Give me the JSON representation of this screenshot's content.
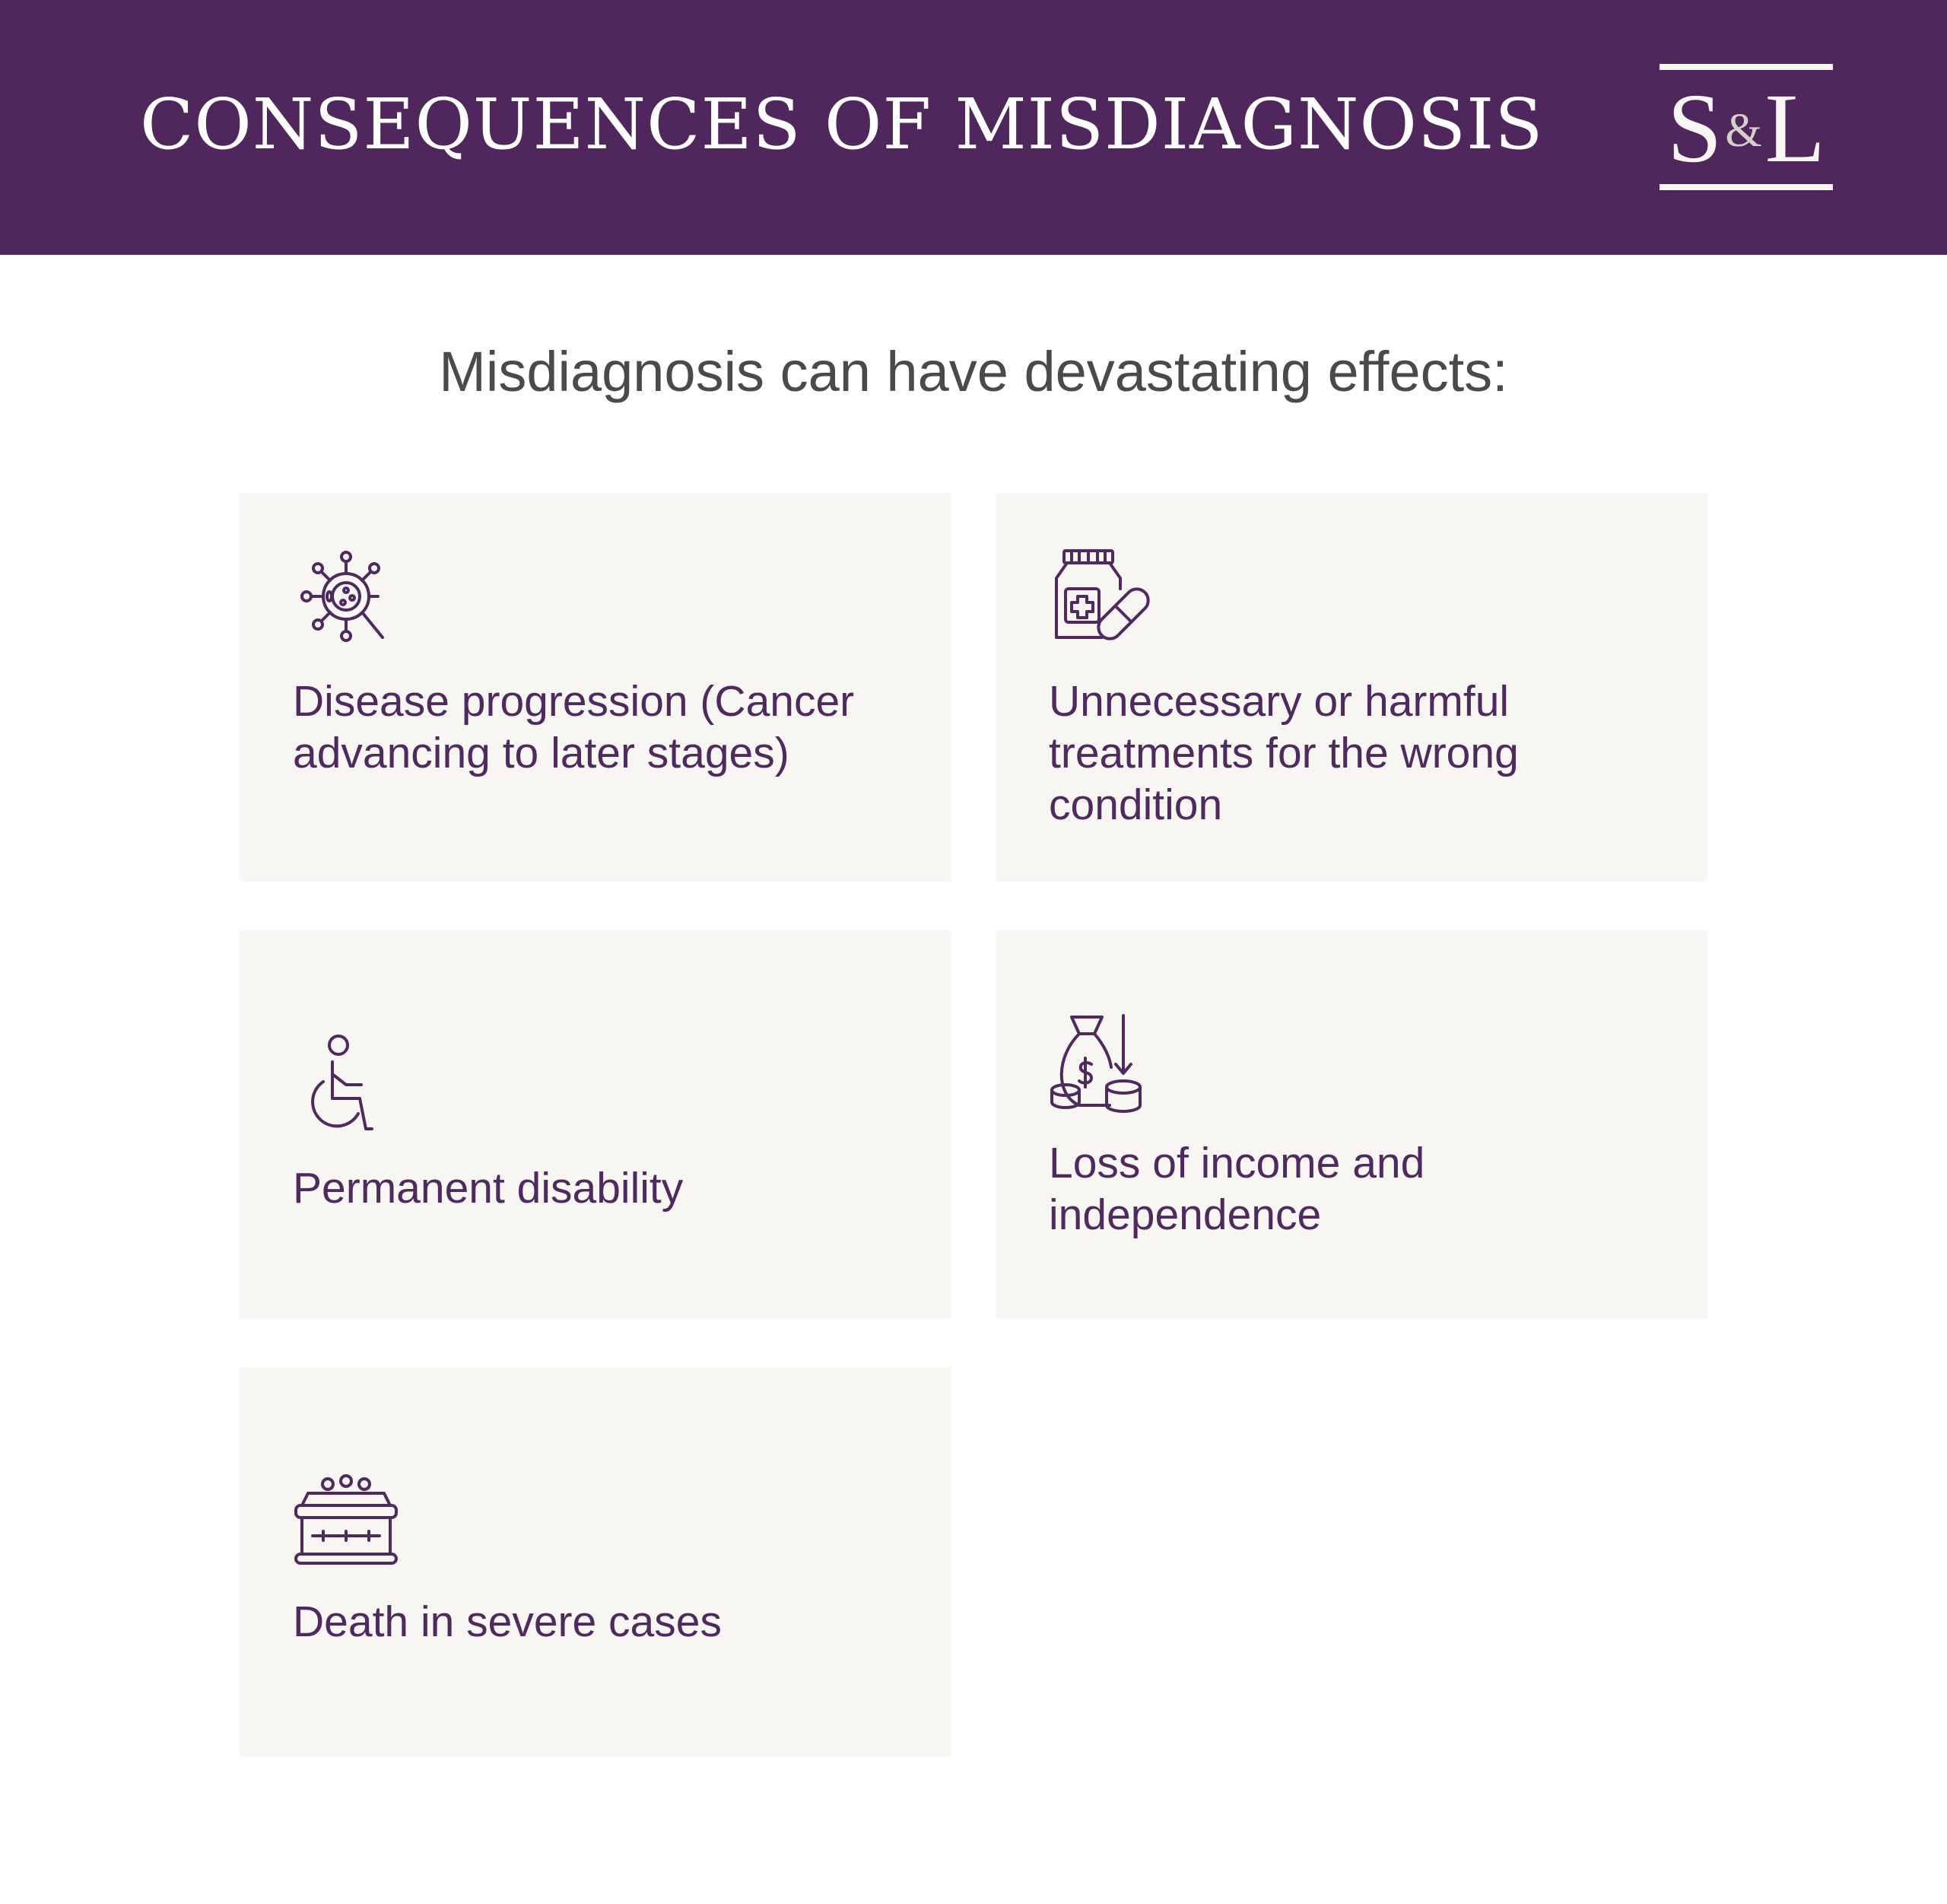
{
  "header": {
    "title": "CONSEQUENCES OF MISDIAGNOSIS",
    "logo": {
      "left": "S",
      "amp": "&",
      "right": "L"
    },
    "background_color": "#50275c"
  },
  "subtitle": "Misdiagnosis can have devastating effects:",
  "accent_color": "#4f2a5e",
  "card_color": "#f7f6f3",
  "cards": [
    {
      "icon": "virus-magnifier-icon",
      "label": "Disease progression (Cancer advancing to later stages)"
    },
    {
      "icon": "medicine-bottle-pill-icon",
      "label": "Unnecessary or harmful treatments for the wrong condition"
    },
    {
      "icon": "wheelchair-icon",
      "label": "Permanent disability"
    },
    {
      "icon": "money-bag-loss-icon",
      "label": "Loss of income and independence"
    },
    {
      "icon": "coffin-flowers-icon",
      "label": "Death in severe cases"
    }
  ]
}
